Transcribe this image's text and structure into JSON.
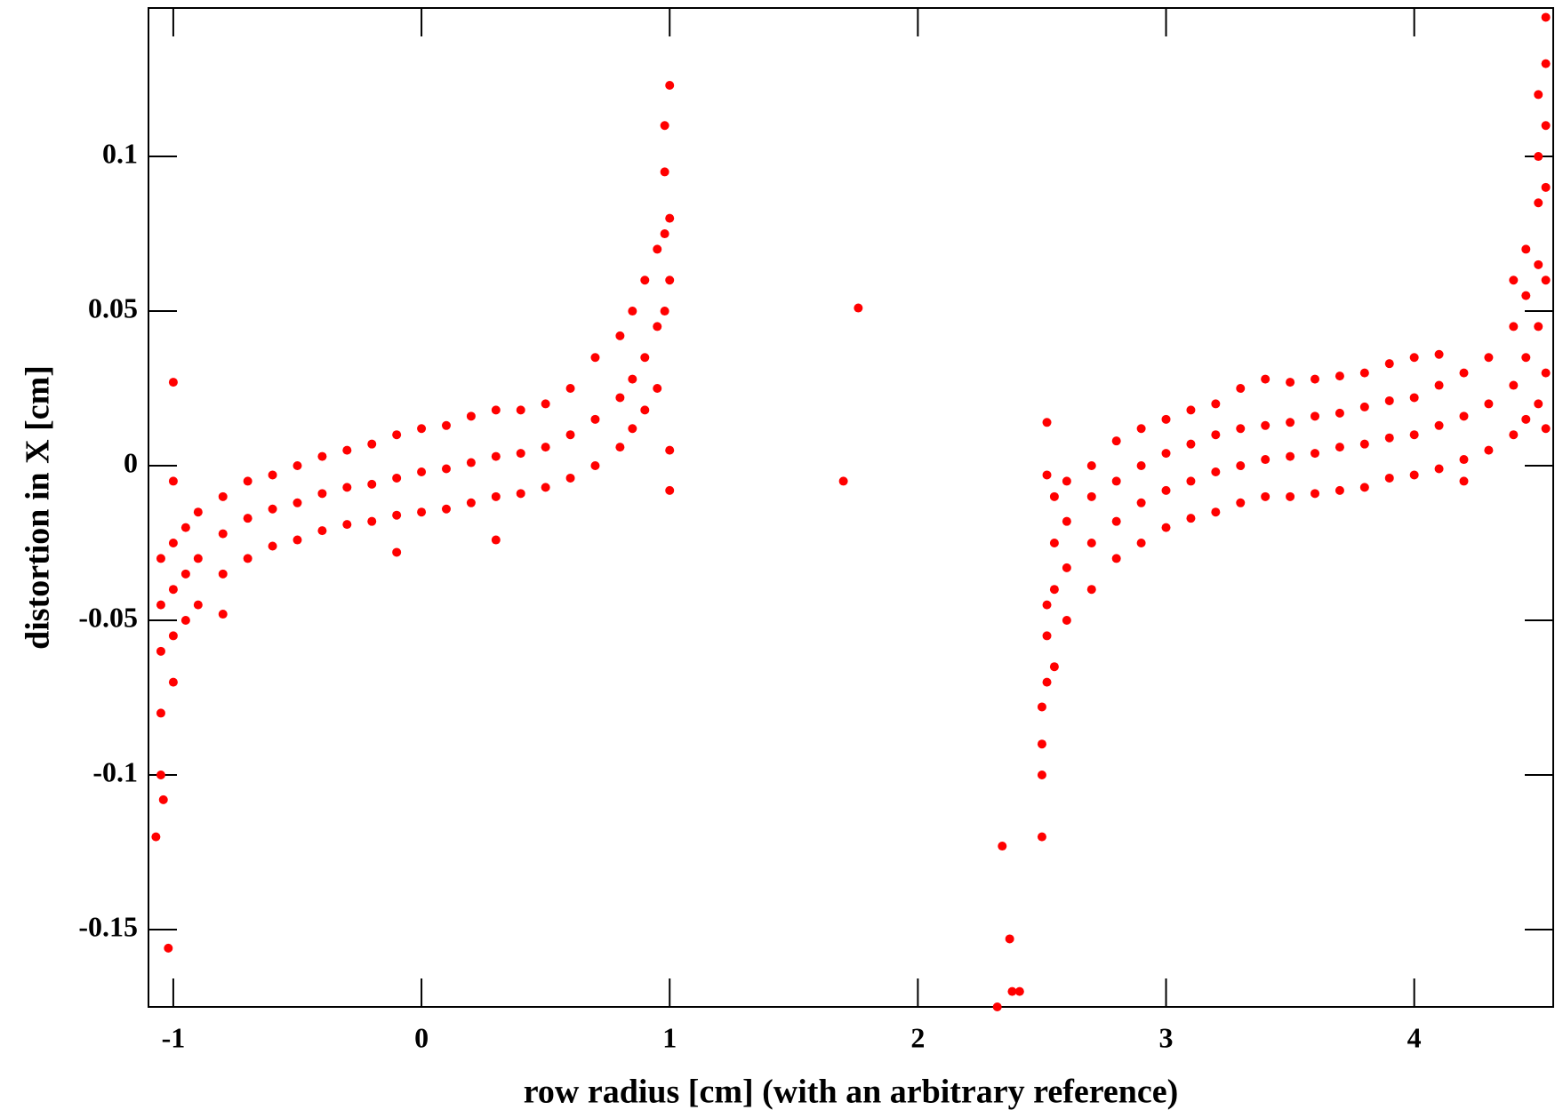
{
  "chart_data": {
    "type": "scatter",
    "x_label": "row radius [cm] (with an arbitrary reference)",
    "y_label": "distortion in X [cm]",
    "color": "#ff0000",
    "xlim": [
      -1.1,
      4.56
    ],
    "ylim": [
      -0.175,
      0.148
    ],
    "xticks": [
      -1,
      0,
      1,
      2,
      3,
      4
    ],
    "yticks": [
      -0.15,
      -0.1,
      -0.05,
      0,
      0.05,
      0.1
    ],
    "x": [
      -1.05,
      -1.05,
      -1.05,
      -1.05,
      -1.05,
      -1.02,
      -1.04,
      -1.07,
      -1,
      -1,
      -1,
      -1,
      -1,
      -1,
      -0.95,
      -0.95,
      -0.95,
      -0.9,
      -0.9,
      -0.9,
      -0.8,
      -0.8,
      -0.8,
      -0.8,
      -0.7,
      -0.7,
      -0.7,
      -0.6,
      -0.6,
      -0.6,
      -0.5,
      -0.5,
      -0.5,
      -0.4,
      -0.4,
      -0.4,
      -0.3,
      -0.3,
      -0.3,
      -0.2,
      -0.2,
      -0.2,
      -0.1,
      -0.1,
      -0.1,
      -0.1,
      0,
      0,
      0,
      0.1,
      0.1,
      0.1,
      0.2,
      0.2,
      0.2,
      0.3,
      0.3,
      0.3,
      0.3,
      0.4,
      0.4,
      0.4,
      0.5,
      0.5,
      0.5,
      0.6,
      0.6,
      0.6,
      0.7,
      0.7,
      0.7,
      0.8,
      0.8,
      0.8,
      0.85,
      0.85,
      0.85,
      0.9,
      0.9,
      0.9,
      0.95,
      0.95,
      0.95,
      0.98,
      0.98,
      0.98,
      0.98,
      1,
      1,
      1,
      1,
      1,
      1.7,
      1.76,
      2.32,
      2.34,
      2.37,
      2.38,
      2.41,
      2.5,
      2.5,
      2.5,
      2.5,
      2.52,
      2.52,
      2.52,
      2.52,
      2.52,
      2.55,
      2.55,
      2.55,
      2.55,
      2.6,
      2.6,
      2.6,
      2.6,
      2.7,
      2.7,
      2.7,
      2.7,
      2.8,
      2.8,
      2.8,
      2.8,
      2.9,
      2.9,
      2.9,
      2.9,
      3,
      3,
      3,
      3,
      3.1,
      3.1,
      3.1,
      3.1,
      3.2,
      3.2,
      3.2,
      3.2,
      3.3,
      3.3,
      3.3,
      3.3,
      3.4,
      3.4,
      3.4,
      3.4,
      3.5,
      3.5,
      3.5,
      3.5,
      3.6,
      3.6,
      3.6,
      3.6,
      3.7,
      3.7,
      3.7,
      3.7,
      3.8,
      3.8,
      3.8,
      3.8,
      3.9,
      3.9,
      3.9,
      3.9,
      4,
      4,
      4,
      4,
      4.1,
      4.1,
      4.1,
      4.1,
      4.2,
      4.2,
      4.2,
      4.2,
      4.3,
      4.3,
      4.3,
      4.4,
      4.4,
      4.4,
      4.4,
      4.45,
      4.45,
      4.45,
      4.45,
      4.5,
      4.5,
      4.5,
      4.5,
      4.5,
      4.5,
      4.53,
      4.53,
      4.53,
      4.53,
      4.53,
      4.53,
      4.53
    ],
    "values": [
      -0.03,
      -0.045,
      -0.06,
      -0.08,
      -0.1,
      -0.156,
      -0.108,
      -0.12,
      0.027,
      -0.005,
      -0.025,
      -0.04,
      -0.055,
      -0.07,
      -0.02,
      -0.035,
      -0.05,
      -0.015,
      -0.03,
      -0.045,
      -0.01,
      -0.022,
      -0.035,
      -0.048,
      -0.005,
      -0.017,
      -0.03,
      -0.003,
      -0.014,
      -0.026,
      0,
      -0.012,
      -0.024,
      0.003,
      -0.009,
      -0.021,
      0.005,
      -0.007,
      -0.019,
      0.007,
      -0.006,
      -0.018,
      0.01,
      -0.004,
      -0.016,
      -0.028,
      0.012,
      -0.002,
      -0.015,
      0.013,
      -0.001,
      -0.014,
      0.016,
      0.001,
      -0.012,
      0.018,
      0.003,
      -0.01,
      -0.024,
      0.018,
      0.004,
      -0.009,
      0.02,
      0.006,
      -0.007,
      0.025,
      0.01,
      -0.004,
      0.035,
      0.015,
      0,
      0.042,
      0.022,
      0.006,
      0.05,
      0.028,
      0.012,
      0.06,
      0.035,
      0.018,
      0.07,
      0.045,
      0.025,
      0.095,
      0.075,
      0.05,
      0.11,
      0.123,
      0.08,
      0.06,
      0.005,
      -0.008,
      -0.005,
      0.051,
      -0.175,
      -0.123,
      -0.153,
      -0.17,
      -0.17,
      -0.12,
      -0.1,
      -0.09,
      -0.078,
      -0.07,
      -0.055,
      -0.045,
      0.014,
      -0.003,
      -0.065,
      -0.04,
      -0.025,
      -0.01,
      -0.05,
      -0.033,
      -0.018,
      -0.005,
      -0.04,
      -0.025,
      -0.01,
      0,
      -0.03,
      -0.018,
      -0.005,
      0.008,
      -0.025,
      -0.012,
      0,
      0.012,
      -0.02,
      -0.008,
      0.004,
      0.015,
      -0.017,
      -0.005,
      0.007,
      0.018,
      -0.015,
      -0.002,
      0.01,
      0.02,
      -0.012,
      0,
      0.012,
      0.025,
      -0.01,
      0.002,
      0.013,
      0.028,
      -0.01,
      0.003,
      0.014,
      0.027,
      -0.009,
      0.004,
      0.016,
      0.028,
      -0.008,
      0.006,
      0.017,
      0.029,
      -0.007,
      0.007,
      0.019,
      0.03,
      -0.004,
      0.009,
      0.021,
      0.033,
      -0.003,
      0.01,
      0.022,
      0.035,
      -0.001,
      0.013,
      0.026,
      0.036,
      0.002,
      0.016,
      0.03,
      -0.005,
      0.005,
      0.02,
      0.035,
      0.01,
      0.026,
      0.045,
      0.06,
      0.015,
      0.035,
      0.055,
      0.07,
      0.02,
      0.045,
      0.065,
      0.085,
      0.1,
      0.12,
      0.03,
      0.06,
      0.09,
      0.11,
      0.13,
      0.145,
      0.012
    ]
  }
}
